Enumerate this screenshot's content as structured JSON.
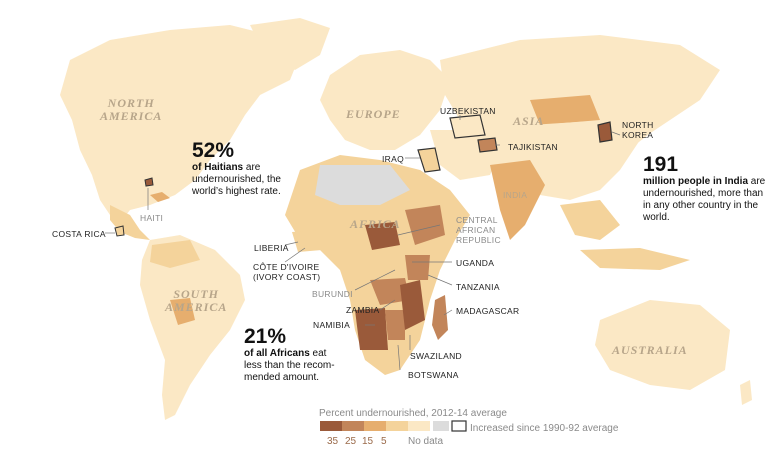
{
  "regions": {
    "north_america": "NORTH\nAMERICA",
    "south_america": "SOUTH\nAMERICA",
    "europe": "EUROPE",
    "africa": "AFRICA",
    "asia": "ASIA",
    "australia": "AUSTRALIA"
  },
  "country_labels": {
    "uzbekistan": "UZBEKISTAN",
    "north_korea": "NORTH\nKOREA",
    "tajikistan": "TAJIKISTAN",
    "iraq": "IRAQ",
    "india": "INDIA",
    "haiti": "HAITI",
    "costa_rica": "COSTA RICA",
    "liberia": "LIBERIA",
    "cote_divoire": "CÔTE D'IVOIRE\n(IVORY COAST)",
    "central_african_republic": "CENTRAL\nAFRICAN\nREPUBLIC",
    "uganda": "UGANDA",
    "burundi": "BURUNDI",
    "tanzania": "TANZANIA",
    "zambia": "ZAMBIA",
    "madagascar": "MADAGASCAR",
    "namibia": "NAMIBIA",
    "swaziland": "SWAZILAND",
    "botswana": "BOTSWANA"
  },
  "callouts": {
    "haiti": {
      "number": "52%",
      "bold": "of Haitians",
      "rest": " are undernourished, the world’s highest rate."
    },
    "india": {
      "number": "191",
      "bold": "million people in India",
      "rest": " are undernourished, more than in any other country in the world."
    },
    "africa": {
      "number": "21%",
      "bold": "of all Africans",
      "rest": " eat less than the recom- mended amount."
    }
  },
  "legend": {
    "title": "Percent undernourished, 2012-14 average",
    "ticks": [
      "35",
      "25",
      "15",
      "5"
    ],
    "no_data": "No data",
    "increased": "Increased since 1990-92 average",
    "colors": [
      "#9a5a3a",
      "#c2855a",
      "#e6ae6e",
      "#f4d39b",
      "#fbe8c5"
    ],
    "no_data_color": "#dcdcdc",
    "ocean_color": "#ffffff"
  }
}
